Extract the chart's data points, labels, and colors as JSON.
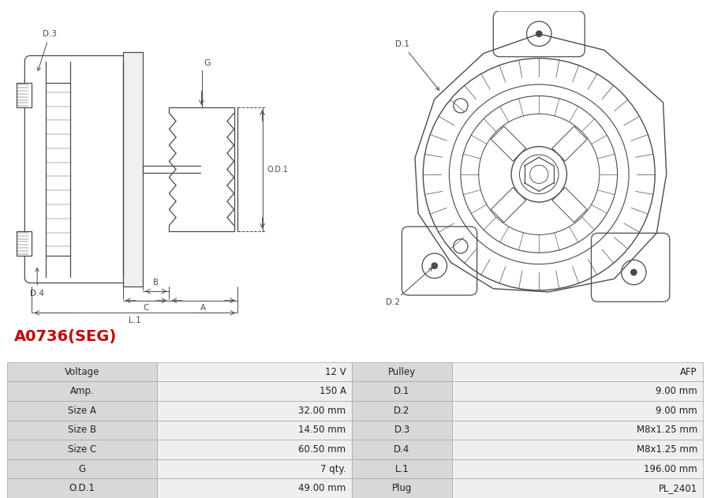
{
  "title": "A0736(SEG)",
  "title_color": "#cc0000",
  "bg_color": "#ffffff",
  "table_rows": [
    [
      "Voltage",
      "12 V",
      "Pulley",
      "AFP"
    ],
    [
      "Amp.",
      "150 A",
      "D.1",
      "9.00 mm"
    ],
    [
      "Size A",
      "32.00 mm",
      "D.2",
      "9.00 mm"
    ],
    [
      "Size B",
      "14.50 mm",
      "D.3",
      "M8x1.25 mm"
    ],
    [
      "Size C",
      "60.50 mm",
      "D.4",
      "M8x1.25 mm"
    ],
    [
      "G",
      "7 qty.",
      "L.1",
      "196.00 mm"
    ],
    [
      "O.D.1",
      "49.00 mm",
      "Plug",
      "PL_2401"
    ]
  ],
  "line_color": "#4a4a4a",
  "ann_color": "#4a4a4a",
  "dim_color": "#4a4a4a",
  "table_border_color": "#aaaaaa",
  "table_label_bg": "#d8d8d8",
  "table_value_bg": "#efefef",
  "title_fontsize": 14,
  "cell_fontsize": 8.5,
  "fig_bg": "#f8f8f8"
}
